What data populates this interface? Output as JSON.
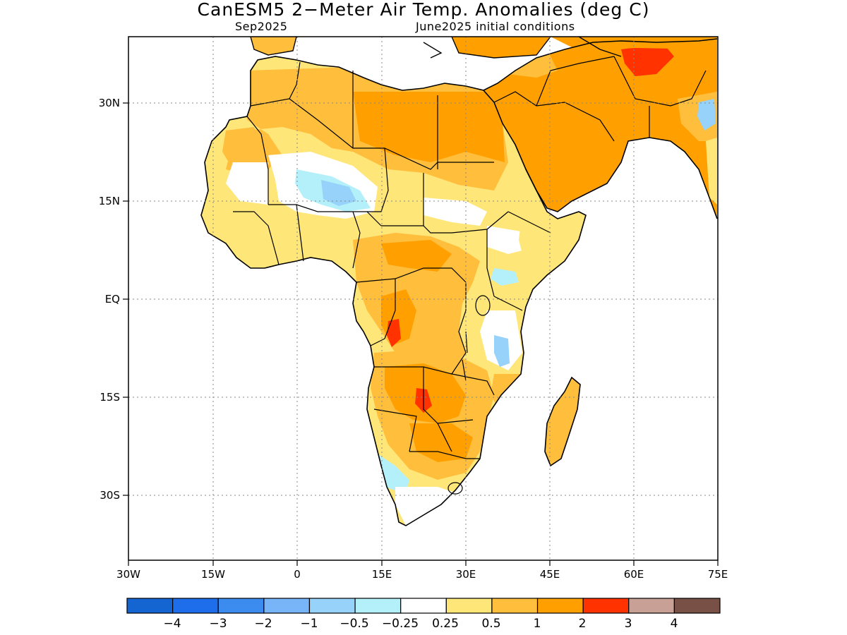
{
  "title": "CanESM5 2−Meter Air Temp. Anomalies (deg C)",
  "subtitle_left": "Sep2025",
  "subtitle_right": "June2025 initial conditions",
  "axes": {
    "lon_labels": [
      "30W",
      "15W",
      "0",
      "15E",
      "30E",
      "45E",
      "60E",
      "75E"
    ],
    "lat_labels": [
      "30N",
      "15N",
      "EQ",
      "15S",
      "30S"
    ]
  },
  "colorbar": {
    "colors": [
      "#1464d2",
      "#1e6eeb",
      "#3c8cf0",
      "#78b4f8",
      "#96d2fa",
      "#b4f0fa",
      "#ffffff",
      "#ffe678",
      "#ffbe3c",
      "#ffa000",
      "#ff3200",
      "#c8a096",
      "#785046"
    ],
    "labels": [
      "−4",
      "−3",
      "−2",
      "−1",
      "−0.5",
      "−0.25",
      "0.25",
      "0.5",
      "1",
      "2",
      "3",
      "4"
    ]
  },
  "colors": {
    "land_outline": "#000000",
    "grid": "#888888"
  }
}
